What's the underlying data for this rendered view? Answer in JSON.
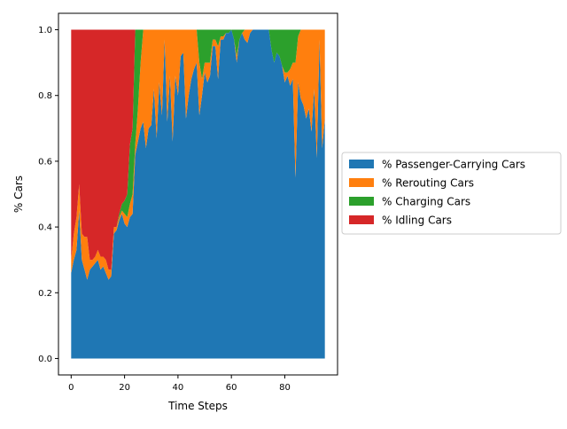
{
  "chart_data": {
    "type": "area",
    "stacked": true,
    "normalized": true,
    "xlabel": "Time Steps",
    "ylabel": "% Cars",
    "xlim": [
      -4.75,
      99.75
    ],
    "ylim": [
      -0.05,
      1.05
    ],
    "xticks": [
      0,
      20,
      40,
      60,
      80
    ],
    "yticks": [
      "0.0",
      "0.2",
      "0.4",
      "0.6",
      "0.8",
      "1.0"
    ],
    "ytick_values": [
      0,
      0.2,
      0.4,
      0.6,
      0.8,
      1.0
    ],
    "grid": false,
    "legend_position": "right",
    "x": [
      0,
      1,
      2,
      3,
      4,
      5,
      6,
      7,
      8,
      9,
      10,
      11,
      12,
      13,
      14,
      15,
      16,
      17,
      18,
      19,
      20,
      21,
      22,
      23,
      24,
      25,
      26,
      27,
      28,
      29,
      30,
      31,
      32,
      33,
      34,
      35,
      36,
      37,
      38,
      39,
      40,
      41,
      42,
      43,
      44,
      45,
      46,
      47,
      48,
      49,
      50,
      51,
      52,
      53,
      54,
      55,
      56,
      57,
      58,
      59,
      60,
      61,
      62,
      63,
      64,
      65,
      66,
      67,
      68,
      69,
      70,
      71,
      72,
      73,
      74,
      75,
      76,
      77,
      78,
      79,
      80,
      81,
      82,
      83,
      84,
      85,
      86,
      87,
      88,
      89,
      90,
      91,
      92,
      93,
      94,
      95
    ],
    "series": [
      {
        "name": "% Passenger-Carrying Cars",
        "color": "#1f77b4",
        "values": [
          0.26,
          0.3,
          0.33,
          0.45,
          0.3,
          0.27,
          0.24,
          0.27,
          0.28,
          0.29,
          0.3,
          0.27,
          0.28,
          0.26,
          0.24,
          0.25,
          0.38,
          0.39,
          0.42,
          0.44,
          0.41,
          0.4,
          0.43,
          0.44,
          0.62,
          0.66,
          0.7,
          0.72,
          0.64,
          0.7,
          0.71,
          0.82,
          0.67,
          0.84,
          0.74,
          0.97,
          0.72,
          0.86,
          0.66,
          0.86,
          0.8,
          0.92,
          0.93,
          0.73,
          0.8,
          0.85,
          0.88,
          0.9,
          0.74,
          0.8,
          0.87,
          0.84,
          0.86,
          0.95,
          0.95,
          0.85,
          0.97,
          0.97,
          0.99,
          0.99,
          1.0,
          0.97,
          0.9,
          0.97,
          0.99,
          0.97,
          0.96,
          0.99,
          1.0,
          1.0,
          1.0,
          1.0,
          1.0,
          1.0,
          1.0,
          0.94,
          0.9,
          0.93,
          0.92,
          0.89,
          0.84,
          0.86,
          0.83,
          0.85,
          0.55,
          0.84,
          0.79,
          0.77,
          0.73,
          0.76,
          0.69,
          0.82,
          0.61,
          0.97,
          0.64,
          0.73
        ]
      },
      {
        "name": "% Rerouting Cars",
        "color": "#ff7f0e",
        "values": [
          0.04,
          0.08,
          0.1,
          0.08,
          0.08,
          0.1,
          0.13,
          0.03,
          0.02,
          0.02,
          0.03,
          0.04,
          0.03,
          0.04,
          0.03,
          0.02,
          0.02,
          0.01,
          0.01,
          0.01,
          0.03,
          0.03,
          0.04,
          0.06,
          0.03,
          0.1,
          0.2,
          0.28,
          0.36,
          0.3,
          0.29,
          0.18,
          0.33,
          0.16,
          0.26,
          0.03,
          0.28,
          0.14,
          0.34,
          0.14,
          0.2,
          0.08,
          0.07,
          0.27,
          0.2,
          0.15,
          0.12,
          0.1,
          0.16,
          0.05,
          0.03,
          0.06,
          0.04,
          0.02,
          0.02,
          0.1,
          0.01,
          0.01,
          0.0,
          0.0,
          0.0,
          0.0,
          0.02,
          0.0,
          0.0,
          0.03,
          0.04,
          0.01,
          0.0,
          0.0,
          0.0,
          0.0,
          0.0,
          0.0,
          0.0,
          0.0,
          0.0,
          0.0,
          0.0,
          0.0,
          0.03,
          0.01,
          0.05,
          0.05,
          0.35,
          0.14,
          0.21,
          0.23,
          0.27,
          0.24,
          0.31,
          0.18,
          0.39,
          0.03,
          0.36,
          0.27
        ]
      },
      {
        "name": "% Charging Cars",
        "color": "#2ca02c",
        "values": [
          0.0,
          0.0,
          0.0,
          0.0,
          0.0,
          0.0,
          0.0,
          0.0,
          0.0,
          0.0,
          0.0,
          0.0,
          0.0,
          0.0,
          0.0,
          0.0,
          0.0,
          0.0,
          0.01,
          0.02,
          0.04,
          0.07,
          0.18,
          0.2,
          0.35,
          0.24,
          0.1,
          0.0,
          0.0,
          0.0,
          0.0,
          0.0,
          0.0,
          0.0,
          0.0,
          0.0,
          0.0,
          0.0,
          0.0,
          0.0,
          0.0,
          0.0,
          0.0,
          0.0,
          0.0,
          0.0,
          0.0,
          0.0,
          0.1,
          0.15,
          0.1,
          0.1,
          0.1,
          0.03,
          0.03,
          0.05,
          0.02,
          0.02,
          0.01,
          0.01,
          0.0,
          0.03,
          0.08,
          0.03,
          0.01,
          0.0,
          0.0,
          0.0,
          0.0,
          0.0,
          0.0,
          0.0,
          0.0,
          0.0,
          0.0,
          0.06,
          0.1,
          0.07,
          0.08,
          0.11,
          0.13,
          0.13,
          0.12,
          0.1,
          0.1,
          0.02,
          0.0,
          0.0,
          0.0,
          0.0,
          0.0,
          0.0,
          0.0,
          0.0,
          0.0,
          0.0
        ]
      },
      {
        "name": "% Idling Cars",
        "color": "#d62728",
        "values": [
          0.7,
          0.62,
          0.57,
          0.47,
          0.62,
          0.63,
          0.63,
          0.7,
          0.7,
          0.69,
          0.67,
          0.69,
          0.69,
          0.7,
          0.73,
          0.73,
          0.6,
          0.6,
          0.56,
          0.53,
          0.52,
          0.5,
          0.35,
          0.3,
          0.0,
          0.0,
          0.0,
          0.0,
          0.0,
          0.0,
          0.0,
          0.0,
          0.0,
          0.0,
          0.0,
          0.0,
          0.0,
          0.0,
          0.0,
          0.0,
          0.0,
          0.0,
          0.0,
          0.0,
          0.0,
          0.0,
          0.0,
          0.0,
          0.0,
          0.0,
          0.0,
          0.0,
          0.0,
          0.0,
          0.0,
          0.0,
          0.0,
          0.0,
          0.0,
          0.0,
          0.0,
          0.0,
          0.0,
          0.0,
          0.0,
          0.0,
          0.0,
          0.0,
          0.0,
          0.0,
          0.0,
          0.0,
          0.0,
          0.0,
          0.0,
          0.0,
          0.0,
          0.0,
          0.0,
          0.0,
          0.0,
          0.0,
          0.0,
          0.0,
          0.0,
          0.0,
          0.0,
          0.0,
          0.0,
          0.0,
          0.0,
          0.0,
          0.0,
          0.0,
          0.0,
          0.0
        ]
      }
    ]
  }
}
